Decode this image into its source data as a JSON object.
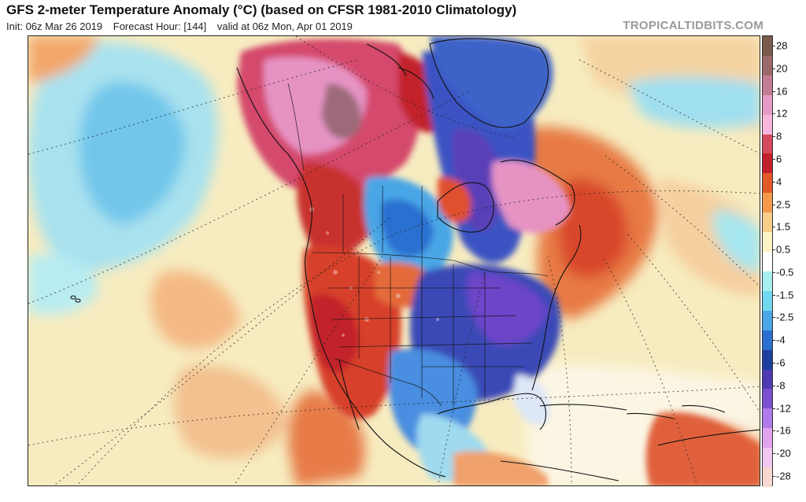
{
  "header": {
    "title": "GFS 2-meter Temperature Anomaly (°C) (based on CFSR 1981-2010 Climatology)",
    "init": "Init: 06z Mar 26 2019",
    "forecast_hour": "Forecast Hour: [144]",
    "valid": "valid at 06z Mon, Apr 01 2019",
    "brand": "TROPICALTIDBITS.COM"
  },
  "colorbar": {
    "labels": [
      "28",
      "20",
      "16",
      "12",
      "8",
      "6",
      "4",
      "2.5",
      "1.5",
      "0.5",
      "-0.5",
      "-1.5",
      "-2.5",
      "-4",
      "-6",
      "-8",
      "-12",
      "-16",
      "-20",
      "-28"
    ],
    "colors": [
      "#7a5a4a",
      "#9c6a6a",
      "#c27d95",
      "#e69bc6",
      "#f7b6dc",
      "#d44a5c",
      "#c2202a",
      "#e25a2a",
      "#f39a4a",
      "#f8cf8a",
      "#fdf3c4",
      "#ffffff",
      "#a8f0f0",
      "#6fd8ee",
      "#4aa6e6",
      "#2b6fd0",
      "#1e3f9e",
      "#4d3ab2",
      "#7b4fd0",
      "#b07ae8",
      "#e0a4ee",
      "#f3c6f2",
      "#f7d8d0"
    ]
  },
  "map": {
    "description_colors": {
      "ocean_warm": "#f6d9a6",
      "ocean_neutral": "#f7f0c8",
      "cold_anomaly": "#4d3ab2",
      "warm_anomaly": "#c2202a",
      "pacific_cool": "#a8e4f0"
    }
  }
}
